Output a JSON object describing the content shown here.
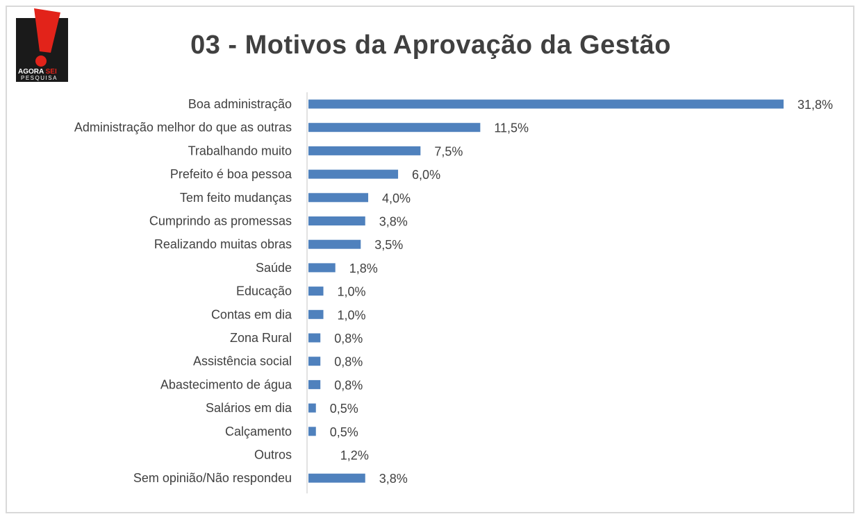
{
  "title": "03 - Motivos da Aprovação da Gestão",
  "logo": {
    "line1_a": "AGORA",
    "line1_b": "SEI",
    "line2": "PESQUISA",
    "colors": {
      "background": "#1a1a1a",
      "mark": "#e2231a",
      "text_accent": "#e2231a"
    }
  },
  "colors": {
    "bar": "#4f81bd",
    "text": "#404040",
    "axis": "#d9d9d9"
  },
  "chart_data": {
    "type": "bar",
    "orientation": "horizontal",
    "title": "03 - Motivos da Aprovação da Gestão",
    "categories": [
      "Boa administração",
      "Administração melhor do que as outras",
      "Trabalhando muito",
      "Prefeito é boa pessoa",
      "Tem feito mudanças",
      "Cumprindo as promessas",
      "Realizando muitas obras",
      "Saúde",
      "Educação",
      "Contas em dia",
      "Zona Rural",
      "Assistência social",
      "Abastecimento de água",
      "Salários em dia",
      "Calçamento",
      "Outros",
      "Sem opinião/Não respondeu"
    ],
    "values": [
      31.8,
      11.5,
      7.5,
      6.0,
      4.0,
      3.8,
      3.5,
      1.8,
      1.0,
      1.0,
      0.8,
      0.8,
      0.8,
      0.5,
      0.5,
      1.2,
      3.8
    ],
    "bar_drawn": [
      true,
      true,
      true,
      true,
      true,
      true,
      true,
      true,
      true,
      true,
      true,
      true,
      true,
      true,
      true,
      false,
      true
    ],
    "data_labels": [
      "31,8%",
      "11,5%",
      "7,5%",
      "6,0%",
      "4,0%",
      "3,8%",
      "3,5%",
      "1,8%",
      "1,0%",
      "1,0%",
      "0,8%",
      "0,8%",
      "0,8%",
      "0,5%",
      "0,5%",
      "1,2%",
      "3,8%"
    ],
    "xlabel": "",
    "ylabel": "",
    "xlim": [
      0,
      31.8
    ],
    "grid": false,
    "legend": "none"
  }
}
